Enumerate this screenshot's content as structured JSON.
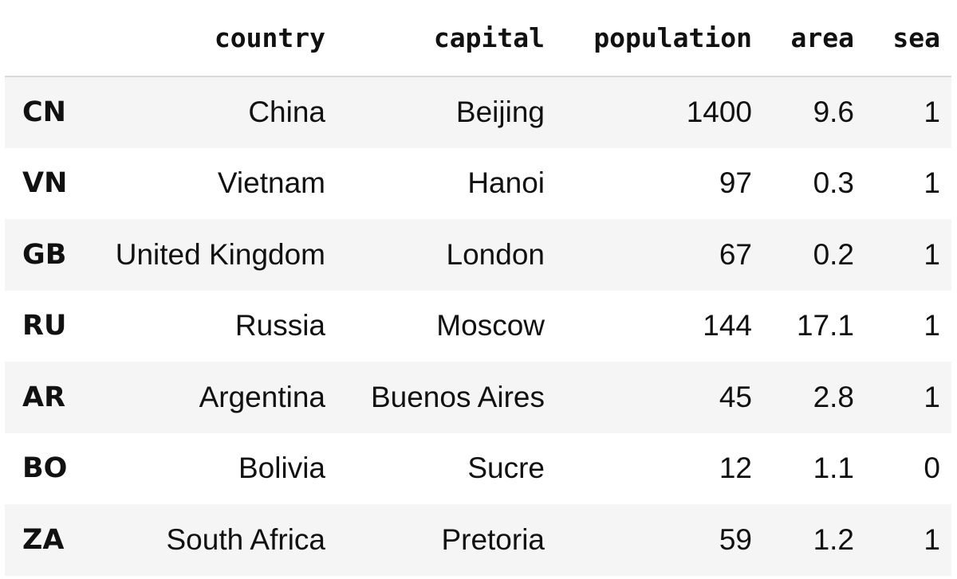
{
  "table": {
    "columns": [
      "country",
      "capital",
      "population",
      "area",
      "sea"
    ],
    "index_header": "",
    "rows": [
      {
        "index": "CN",
        "cells": [
          "China",
          "Beijing",
          "1400",
          "9.6",
          "1"
        ]
      },
      {
        "index": "VN",
        "cells": [
          "Vietnam",
          "Hanoi",
          "97",
          "0.3",
          "1"
        ]
      },
      {
        "index": "GB",
        "cells": [
          "United Kingdom",
          "London",
          "67",
          "0.2",
          "1"
        ]
      },
      {
        "index": "RU",
        "cells": [
          "Russia",
          "Moscow",
          "144",
          "17.1",
          "1"
        ]
      },
      {
        "index": "AR",
        "cells": [
          "Argentina",
          "Buenos Aires",
          "45",
          "2.8",
          "1"
        ]
      },
      {
        "index": "BO",
        "cells": [
          "Bolivia",
          "Sucre",
          "12",
          "1.1",
          "0"
        ]
      },
      {
        "index": "ZA",
        "cells": [
          "South Africa",
          "Pretoria",
          "59",
          "1.2",
          "1"
        ]
      }
    ]
  }
}
